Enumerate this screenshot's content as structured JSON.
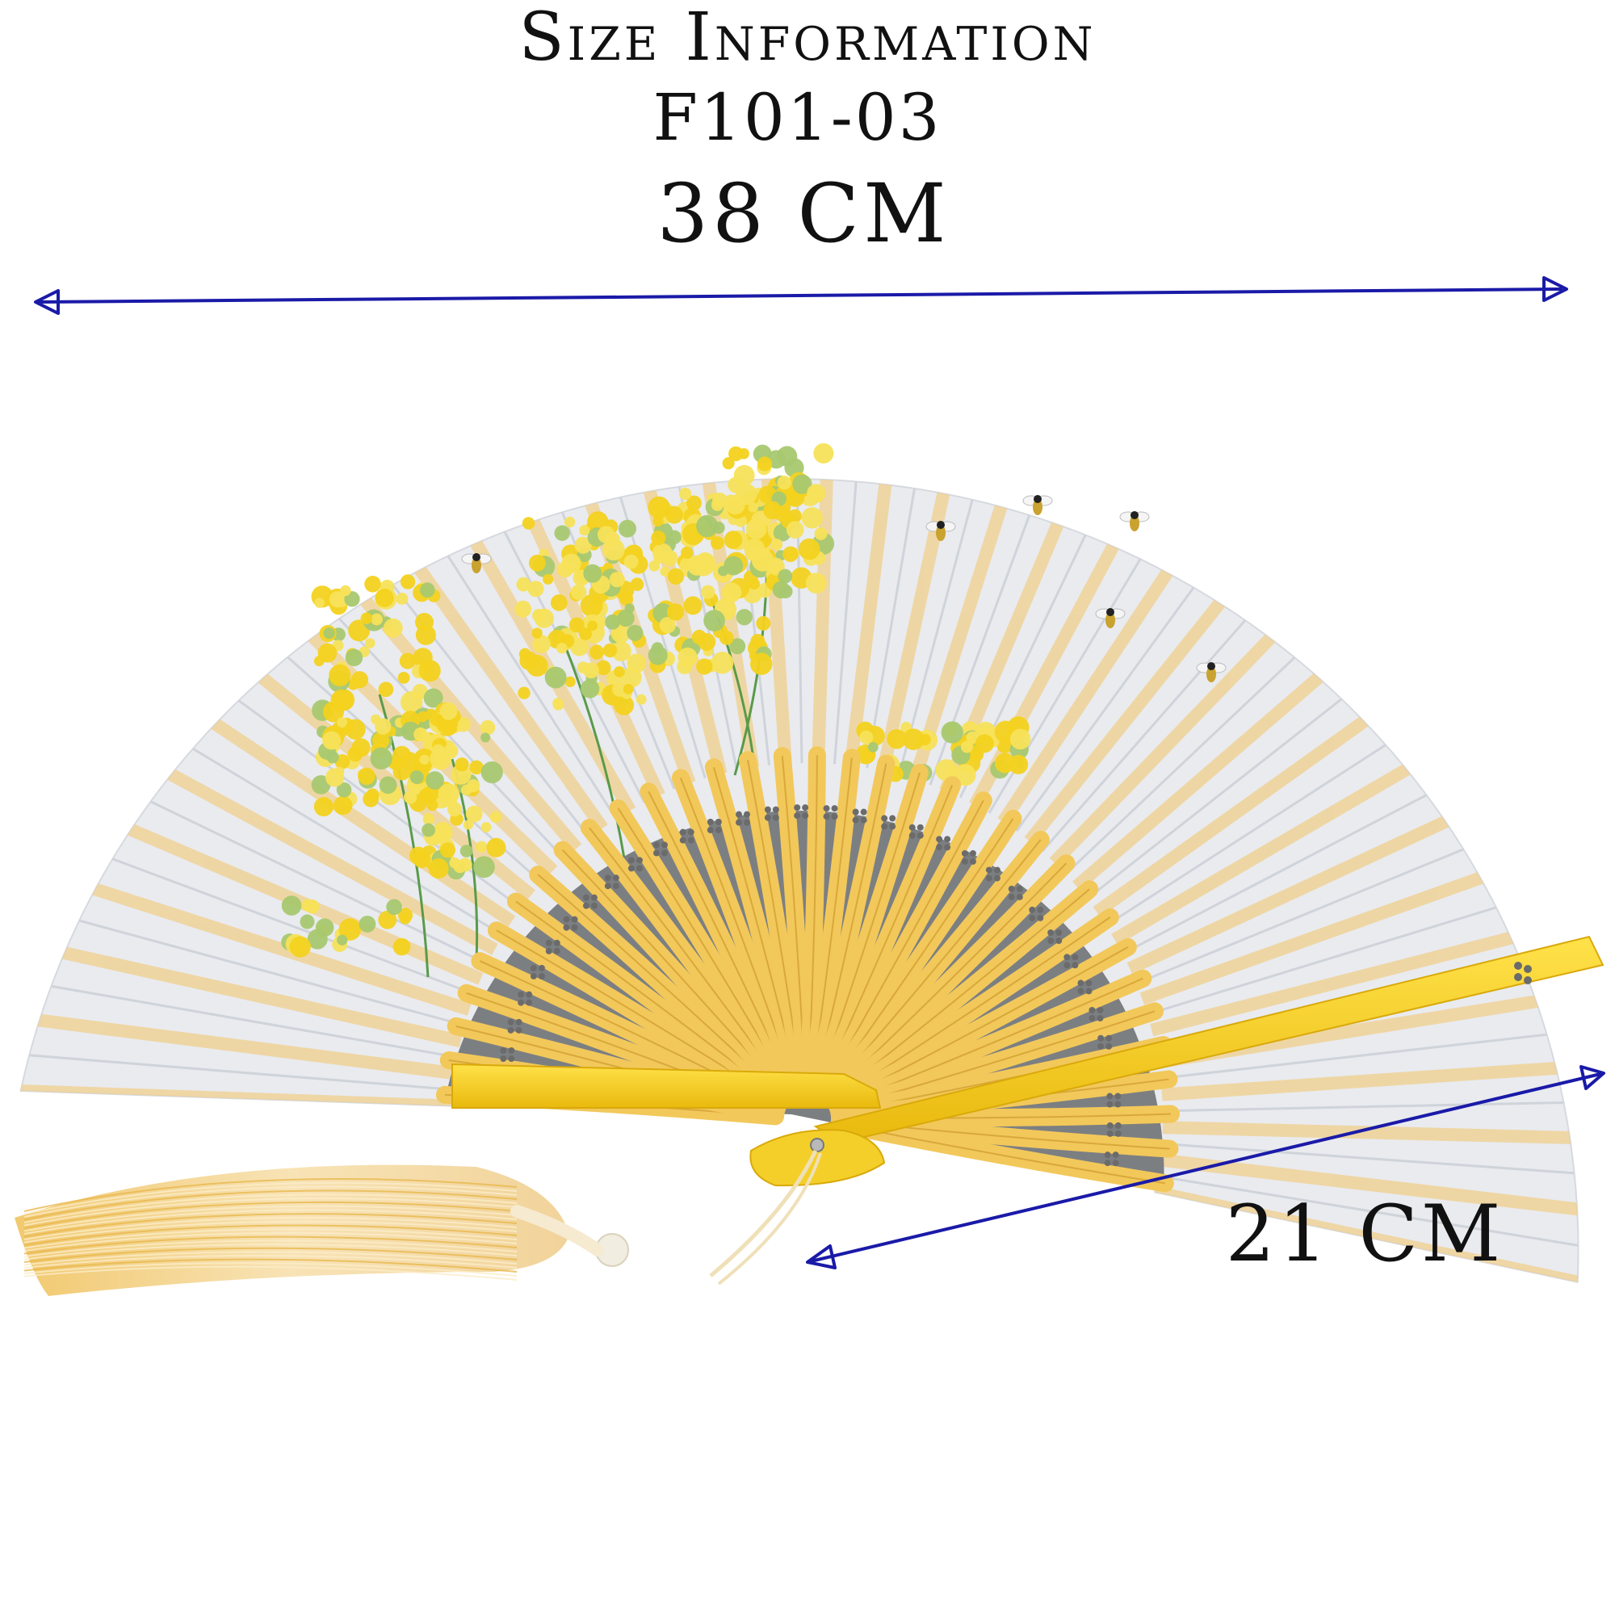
{
  "heading": {
    "title": "Size Information",
    "model": "F101-03"
  },
  "dimensions": {
    "width_label": "38 CM",
    "depth_label": "21 CM"
  },
  "colors": {
    "arrow": "#1a1aa8",
    "fabric": "#e9ebef",
    "bamboo": "#f2c85a",
    "guard": "#f7d430",
    "flower": "#f3d21f",
    "tassel": "#f4dba6",
    "text": "#111111"
  },
  "picture": {
    "subject": "folding-hand-fan-with-tassel"
  }
}
